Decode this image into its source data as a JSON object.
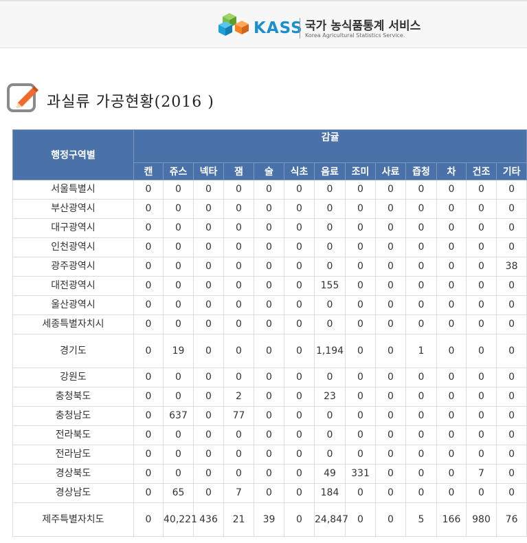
{
  "brand": {
    "name": "KASS",
    "title_ko": "국가 농식품통계 서비스",
    "title_en": "Korea Agricultural Statistics Service.",
    "colors": {
      "primary": "#1b8fce",
      "cube_green": "#7ac143",
      "cube_blue": "#1ba1d8",
      "cube_orange": "#f58220"
    }
  },
  "page": {
    "title": "과실류 가공현황(2016 )",
    "title_icon": "pencil-icon"
  },
  "table": {
    "region_header": "행정구역별",
    "group_header": "감귤",
    "header_color": "#4a72a8",
    "columns": [
      "캔",
      "쥬스",
      "넥타",
      "잼",
      "술",
      "식초",
      "음료",
      "조미",
      "사료",
      "즙청",
      "차",
      "건조",
      "기타"
    ],
    "rows": [
      {
        "region": "서울특별시",
        "values": [
          "0",
          "0",
          "0",
          "0",
          "0",
          "0",
          "0",
          "0",
          "0",
          "0",
          "0",
          "0",
          "0"
        ]
      },
      {
        "region": "부산광역시",
        "values": [
          "0",
          "0",
          "0",
          "0",
          "0",
          "0",
          "0",
          "0",
          "0",
          "0",
          "0",
          "0",
          "0"
        ]
      },
      {
        "region": "대구광역시",
        "values": [
          "0",
          "0",
          "0",
          "0",
          "0",
          "0",
          "0",
          "0",
          "0",
          "0",
          "0",
          "0",
          "0"
        ]
      },
      {
        "region": "인천광역시",
        "values": [
          "0",
          "0",
          "0",
          "0",
          "0",
          "0",
          "0",
          "0",
          "0",
          "0",
          "0",
          "0",
          "0"
        ]
      },
      {
        "region": "광주광역시",
        "values": [
          "0",
          "0",
          "0",
          "0",
          "0",
          "0",
          "0",
          "0",
          "0",
          "0",
          "0",
          "0",
          "38"
        ]
      },
      {
        "region": "대전광역시",
        "values": [
          "0",
          "0",
          "0",
          "0",
          "0",
          "0",
          "155",
          "0",
          "0",
          "0",
          "0",
          "0",
          "0"
        ]
      },
      {
        "region": "울산광역시",
        "values": [
          "0",
          "0",
          "0",
          "0",
          "0",
          "0",
          "0",
          "0",
          "0",
          "0",
          "0",
          "0",
          "0"
        ]
      },
      {
        "region": "세종특별자치시",
        "values": [
          "0",
          "0",
          "0",
          "0",
          "0",
          "0",
          "0",
          "0",
          "0",
          "0",
          "0",
          "0",
          "0"
        ]
      },
      {
        "region": "경기도",
        "values": [
          "0",
          "19",
          "0",
          "0",
          "0",
          "0",
          "1,194",
          "0",
          "0",
          "1",
          "0",
          "0",
          "0"
        ],
        "tall": true
      },
      {
        "region": "강원도",
        "values": [
          "0",
          "0",
          "0",
          "0",
          "0",
          "0",
          "0",
          "0",
          "0",
          "0",
          "0",
          "0",
          "0"
        ]
      },
      {
        "region": "충청북도",
        "values": [
          "0",
          "0",
          "0",
          "2",
          "0",
          "0",
          "23",
          "0",
          "0",
          "0",
          "0",
          "0",
          "0"
        ]
      },
      {
        "region": "충청남도",
        "values": [
          "0",
          "637",
          "0",
          "77",
          "0",
          "0",
          "0",
          "0",
          "0",
          "0",
          "0",
          "0",
          "0"
        ]
      },
      {
        "region": "전라북도",
        "values": [
          "0",
          "0",
          "0",
          "0",
          "0",
          "0",
          "0",
          "0",
          "0",
          "0",
          "0",
          "0",
          "0"
        ]
      },
      {
        "region": "전라남도",
        "values": [
          "0",
          "0",
          "0",
          "0",
          "0",
          "0",
          "0",
          "0",
          "0",
          "0",
          "0",
          "0",
          "0"
        ]
      },
      {
        "region": "경상북도",
        "values": [
          "0",
          "0",
          "0",
          "0",
          "0",
          "0",
          "49",
          "331",
          "0",
          "0",
          "0",
          "7",
          "0"
        ]
      },
      {
        "region": "경상남도",
        "values": [
          "0",
          "65",
          "0",
          "7",
          "0",
          "0",
          "184",
          "0",
          "0",
          "0",
          "0",
          "0",
          "0"
        ]
      },
      {
        "region": "제주특별자치도",
        "values": [
          "0",
          "40,221",
          "436",
          "21",
          "39",
          "0",
          "24,847",
          "0",
          "0",
          "5",
          "166",
          "980",
          "76"
        ],
        "tall": true
      }
    ]
  }
}
